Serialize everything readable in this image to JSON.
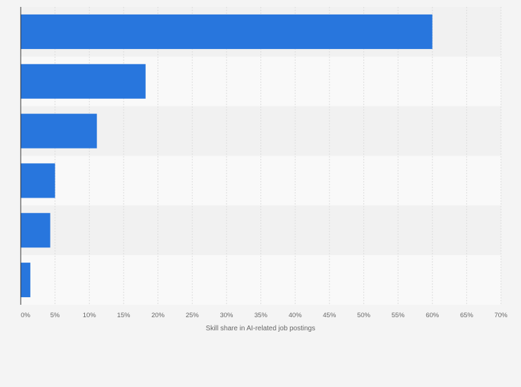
{
  "chart_data": {
    "type": "bar",
    "orientation": "horizontal",
    "categories": [
      "",
      "",
      "",
      "",
      "",
      ""
    ],
    "values": [
      60,
      18.2,
      11.1,
      5.0,
      4.3,
      1.4
    ],
    "xlabel": "Skill share in AI-related job postings",
    "ylabel": "",
    "xlim": [
      0,
      70
    ],
    "x_ticks": [
      "0%",
      "5%",
      "10%",
      "15%",
      "20%",
      "25%",
      "30%",
      "35%",
      "40%",
      "45%",
      "50%",
      "55%",
      "60%",
      "65%",
      "70%"
    ],
    "grid": true,
    "legend": "none",
    "bar_color": "#2876dd",
    "band_colors": [
      "#f1f1f1",
      "#f9f9f9"
    ]
  }
}
